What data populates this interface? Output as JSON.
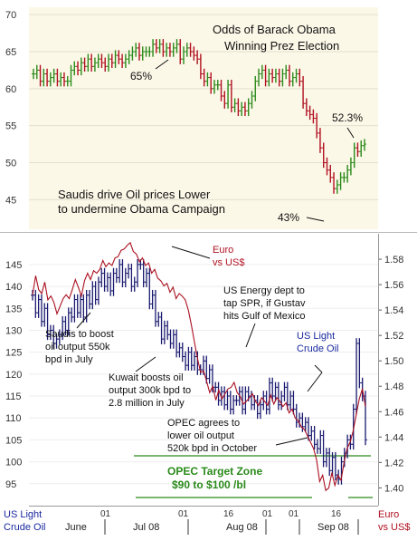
{
  "chart_data": [
    {
      "type": "candlestick",
      "title_lines": [
        "Odds of Barack Obama",
        "Winning Prez Election"
      ],
      "annotation_lines": [
        "Saudis drive Oil prices Lower",
        "to undermine Obama Campaign"
      ],
      "ylim": [
        41,
        71
      ],
      "yticks": [
        45,
        50,
        55,
        60,
        65,
        70
      ],
      "point_labels": [
        {
          "text": "65%",
          "value": 65
        },
        {
          "text": "52.3%",
          "value": 52.3
        },
        {
          "text": "43%",
          "value": 43
        }
      ],
      "series": [
        {
          "values": [
            62,
            62.5,
            61,
            62,
            61,
            61.5,
            62,
            61,
            61.5,
            61,
            61,
            62.5,
            63,
            62.5,
            63.5,
            63,
            64,
            63,
            63.5,
            64,
            63.5,
            63,
            64,
            63.5,
            64.5,
            64,
            63.5,
            64,
            64.5,
            65,
            65.5,
            64.5,
            65,
            65,
            65,
            66,
            65.5,
            66,
            65,
            65.5,
            65,
            65.5,
            66,
            64,
            65,
            65.5,
            65,
            64.5,
            64,
            62,
            61,
            61.5,
            60,
            60.5,
            60.5,
            59,
            58,
            60.5,
            57.5,
            58,
            57,
            57.5,
            57,
            58,
            59,
            61,
            62,
            62.5,
            61,
            62,
            61.5,
            62,
            61,
            62,
            62.5,
            61,
            61.5,
            62,
            61,
            58,
            57,
            56.5,
            56,
            54,
            52,
            50,
            49,
            48,
            46.5,
            47,
            48,
            48,
            49,
            50,
            52,
            51.5,
            52.3,
            52.5
          ]
        }
      ]
    },
    {
      "type": "candlestick",
      "ylim": [
        90,
        152
      ],
      "yticks": [
        95,
        100,
        105,
        110,
        115,
        120,
        125,
        130,
        135,
        140,
        145
      ],
      "y2lim": [
        1.386,
        1.6
      ],
      "y2ticks": [
        1.4,
        1.42,
        1.44,
        1.46,
        1.48,
        1.5,
        1.52,
        1.54,
        1.56,
        1.58
      ],
      "ylabel_lines": [
        "US Light",
        "Crude Oil"
      ],
      "y2label_lines": [
        "Euro",
        "vs US$"
      ],
      "x_day_ticks": [
        "01",
        "01",
        "01",
        "16",
        "01",
        "16"
      ],
      "x_month_labels": [
        "June",
        "Jul 08",
        "Aug 08",
        "Sep 08"
      ],
      "annotations": [
        {
          "lines": [
            "Saudis to boost",
            "oil output 550k",
            "bpd in July"
          ]
        },
        {
          "lines": [
            "Kuwait boosts oil",
            "output 300k bpd to",
            "2.8 million in July"
          ]
        },
        {
          "lines": [
            "US Energy dept to",
            "tap SPR, if Gustav",
            "hits Gulf of Mexico"
          ]
        },
        {
          "lines": [
            "US Light",
            "Crude Oil"
          ]
        },
        {
          "lines": [
            "OPEC agrees to",
            "lower oil output",
            "520k bpd in October"
          ]
        },
        {
          "lines": [
            "OPEC Target Zone",
            "$90 to $100 /bl"
          ]
        },
        {
          "lines": [
            "Euro",
            "vs US$"
          ]
        }
      ],
      "target_zone": [
        90,
        100
      ],
      "series": [
        {
          "name": "US Light Crude Oil",
          "values": [
            138,
            134,
            137,
            132,
            135,
            129,
            130,
            127,
            128,
            129,
            132,
            130,
            134,
            133,
            137,
            134,
            137,
            133,
            138,
            136,
            140,
            137,
            141,
            143,
            140,
            142,
            139,
            143,
            142,
            145,
            141,
            143,
            144,
            140,
            141,
            145,
            145,
            141,
            143,
            136,
            138,
            132,
            133,
            128,
            131,
            129,
            127,
            129,
            125,
            126,
            124,
            122,
            125,
            122,
            124,
            121,
            121,
            123,
            119,
            121,
            117,
            117,
            114,
            116,
            113,
            115,
            112,
            114,
            114,
            116,
            112,
            116,
            115,
            113,
            114,
            111,
            113,
            115,
            112,
            118,
            115,
            117,
            113,
            115,
            117,
            113,
            115,
            112,
            109,
            110,
            108,
            109,
            106,
            107,
            104,
            103,
            106,
            100,
            102,
            98,
            101,
            97,
            96,
            100,
            102,
            105,
            104,
            112,
            127,
            118,
            115,
            105
          ]
        },
        {
          "name": "Euro vs US$",
          "values": [
            1.552,
            1.567,
            1.556,
            1.553,
            1.562,
            1.548,
            1.551,
            1.546,
            1.537,
            1.543,
            1.549,
            1.552,
            1.549,
            1.556,
            1.564,
            1.558,
            1.551,
            1.563,
            1.569,
            1.564,
            1.571,
            1.569,
            1.572,
            1.579,
            1.574,
            1.577,
            1.575,
            1.581,
            1.582,
            1.587,
            1.588,
            1.591,
            1.593,
            1.586,
            1.584,
            1.578,
            1.581,
            1.575,
            1.577,
            1.569,
            1.572,
            1.565,
            1.563,
            1.559,
            1.561,
            1.554,
            1.558,
            1.549,
            1.553,
            1.551,
            1.548,
            1.54,
            1.528,
            1.515,
            1.502,
            1.491,
            1.492,
            1.484,
            1.475,
            1.48,
            1.469,
            1.477,
            1.47,
            1.474,
            1.478,
            1.479,
            1.483,
            1.475,
            1.472,
            1.466,
            1.468,
            1.471,
            1.474,
            1.468,
            1.465,
            1.471,
            1.468,
            1.465,
            1.473,
            1.466,
            1.471,
            1.468,
            1.464,
            1.467,
            1.459,
            1.462,
            1.455,
            1.453,
            1.448,
            1.446,
            1.441,
            1.436,
            1.431,
            1.422,
            1.405,
            1.41,
            1.398,
            1.4,
            1.412,
            1.402,
            1.41,
            1.406,
            1.42,
            1.431,
            1.436,
            1.445,
            1.458,
            1.47,
            1.478,
            1.464
          ]
        }
      ]
    }
  ],
  "colors": {
    "top_background": "#fcf8e8",
    "up_bar": "#2a8a1a",
    "down_bar": "#b01020",
    "oil_bar": "#1a1a70",
    "euro_line": "#aa1020",
    "target_zone": "#2a8a1a",
    "label_blue": "#1a2aa0",
    "label_red": "#b01020",
    "label_dark": "#222222"
  }
}
